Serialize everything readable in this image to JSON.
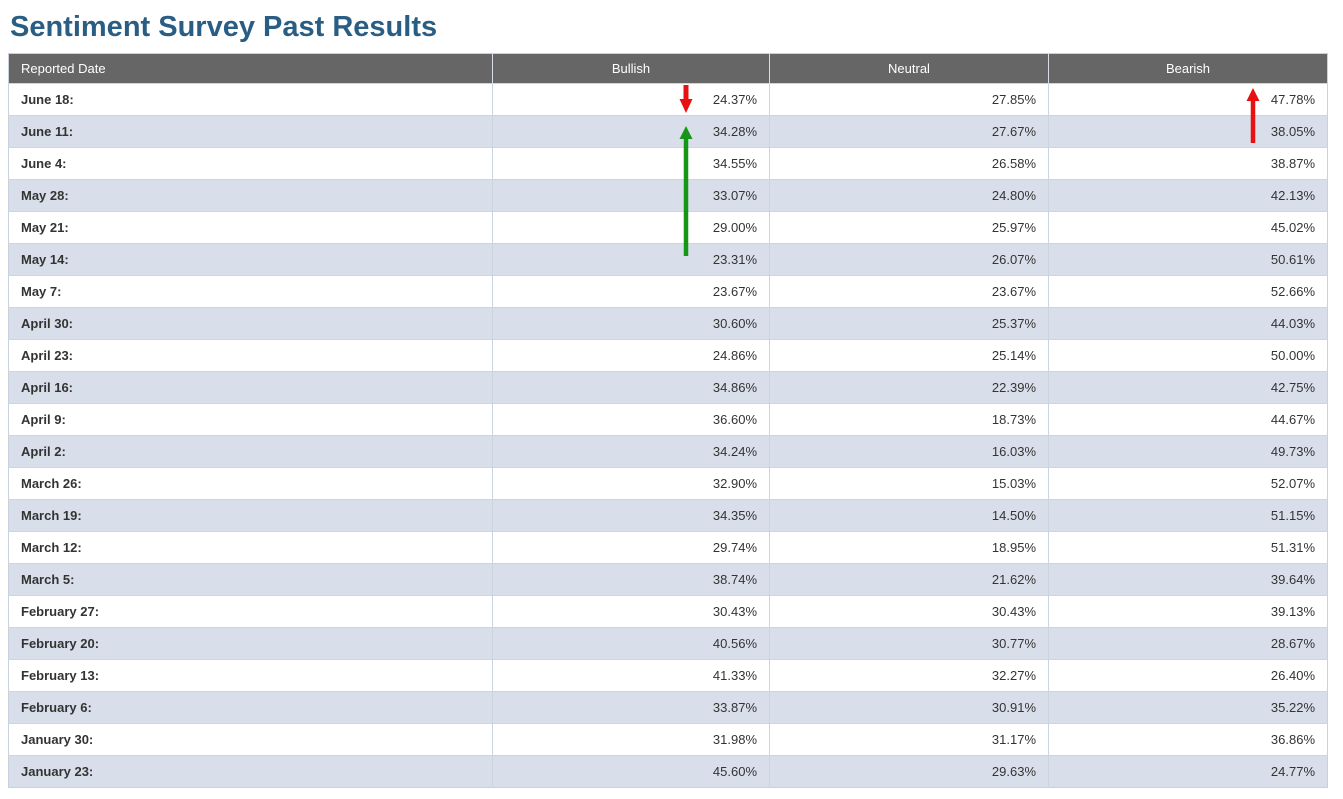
{
  "page_title": "Sentiment Survey Past Results",
  "table": {
    "columns": [
      "Reported Date",
      "Bullish",
      "Neutral",
      "Bearish"
    ],
    "rows": [
      {
        "date": "June 18:",
        "bullish": "24.37%",
        "neutral": "27.85%",
        "bearish": "47.78%"
      },
      {
        "date": "June 11:",
        "bullish": "34.28%",
        "neutral": "27.67%",
        "bearish": "38.05%"
      },
      {
        "date": "June 4:",
        "bullish": "34.55%",
        "neutral": "26.58%",
        "bearish": "38.87%"
      },
      {
        "date": "May 28:",
        "bullish": "33.07%",
        "neutral": "24.80%",
        "bearish": "42.13%"
      },
      {
        "date": "May 21:",
        "bullish": "29.00%",
        "neutral": "25.97%",
        "bearish": "45.02%"
      },
      {
        "date": "May 14:",
        "bullish": "23.31%",
        "neutral": "26.07%",
        "bearish": "50.61%"
      },
      {
        "date": "May 7:",
        "bullish": "23.67%",
        "neutral": "23.67%",
        "bearish": "52.66%"
      },
      {
        "date": "April 30:",
        "bullish": "30.60%",
        "neutral": "25.37%",
        "bearish": "44.03%"
      },
      {
        "date": "April 23:",
        "bullish": "24.86%",
        "neutral": "25.14%",
        "bearish": "50.00%"
      },
      {
        "date": "April 16:",
        "bullish": "34.86%",
        "neutral": "22.39%",
        "bearish": "42.75%"
      },
      {
        "date": "April 9:",
        "bullish": "36.60%",
        "neutral": "18.73%",
        "bearish": "44.67%"
      },
      {
        "date": "April 2:",
        "bullish": "34.24%",
        "neutral": "16.03%",
        "bearish": "49.73%"
      },
      {
        "date": "March 26:",
        "bullish": "32.90%",
        "neutral": "15.03%",
        "bearish": "52.07%"
      },
      {
        "date": "March 19:",
        "bullish": "34.35%",
        "neutral": "14.50%",
        "bearish": "51.15%"
      },
      {
        "date": "March 12:",
        "bullish": "29.74%",
        "neutral": "18.95%",
        "bearish": "51.31%"
      },
      {
        "date": "March 5:",
        "bullish": "38.74%",
        "neutral": "21.62%",
        "bearish": "39.64%"
      },
      {
        "date": "February 27:",
        "bullish": "30.43%",
        "neutral": "30.43%",
        "bearish": "39.13%"
      },
      {
        "date": "February 20:",
        "bullish": "40.56%",
        "neutral": "30.77%",
        "bearish": "28.67%"
      },
      {
        "date": "February 13:",
        "bullish": "41.33%",
        "neutral": "32.27%",
        "bearish": "26.40%"
      },
      {
        "date": "February 6:",
        "bullish": "33.87%",
        "neutral": "30.91%",
        "bearish": "35.22%"
      },
      {
        "date": "January 30:",
        "bullish": "31.98%",
        "neutral": "31.17%",
        "bearish": "36.86%"
      },
      {
        "date": "January 23:",
        "bullish": "45.60%",
        "neutral": "29.63%",
        "bearish": "24.77%"
      }
    ]
  },
  "annotations": [
    {
      "column": "Bullish",
      "direction": "down",
      "color": "#e81111",
      "row_start": "June 18:",
      "row_end": "June 18:",
      "meaning": "bullish-decrease-arrow"
    },
    {
      "column": "Bullish",
      "direction": "up",
      "color": "#169616",
      "row_start": "June 11:",
      "row_end": "May 14:",
      "meaning": "bullish-increase-arrow"
    },
    {
      "column": "Bearish",
      "direction": "up",
      "color": "#e81111",
      "row_start": "June 18:",
      "row_end": "June 11:",
      "meaning": "bearish-increase-arrow"
    }
  ],
  "colors": {
    "title": "#2a5d83",
    "header_bg": "#666666",
    "header_text": "#ffffff",
    "row_alt_bg": "#d9dfea",
    "row_bg": "#ffffff",
    "cell_text": "#333333",
    "grid_line": "#ccd4e0",
    "arrow_red": "#e81111",
    "arrow_green": "#169616"
  }
}
